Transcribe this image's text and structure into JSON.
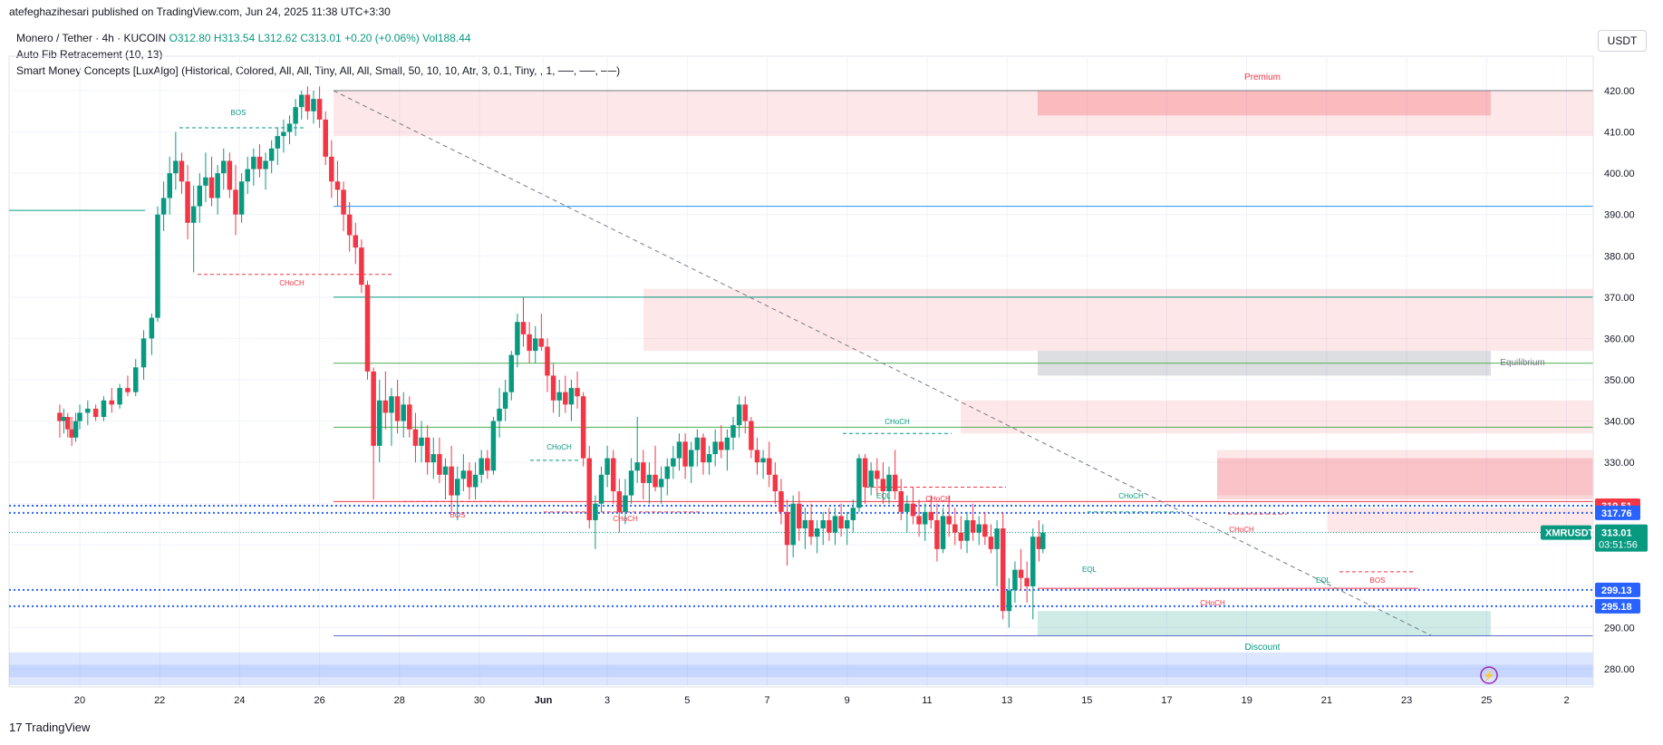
{
  "header": {
    "published_line": "atefeghazihesari published on TradingView.com, Jun 24, 2025 11:38 UTC+3:30"
  },
  "legend": {
    "symbol_line": "Monero / Tether · 4h · KUCOIN",
    "open": "O312.80",
    "high": "H313.54",
    "low": "L312.62",
    "close": "C313.01",
    "change": "+0.20 (+0.06%)",
    "volume": "Vol188.44",
    "indicator1": "Auto Fib Retracement (10, 13)",
    "indicator2": "Smart Money Concepts [LuxAlgo] (Historical, Colored, All, All, Tiny, All, All, Small, 50, 10, 10, Atr, 3, 0.1, Tiny, , 1, ──, ──, ──)"
  },
  "currency_button": "USDT",
  "brand": "TradingView",
  "colors": {
    "up": "#089981",
    "down": "#f23645",
    "fib_blue": "#2962ff",
    "premium_zone": "#f23645",
    "discount_zone": "#089981"
  },
  "chart_data": {
    "type": "candlestick",
    "symbol": "XMRUSDT",
    "timeframe": "4h",
    "y_axis": {
      "ticks": [
        "420.00",
        "410.00",
        "400.00",
        "390.00",
        "380.00",
        "370.00",
        "360.00",
        "350.00",
        "340.00",
        "330.00",
        "320.00",
        "290.00",
        "280.00"
      ]
    },
    "x_axis": {
      "ticks": [
        "20",
        "22",
        "24",
        "26",
        "28",
        "30",
        "Jun",
        "3",
        "5",
        "7",
        "9",
        "11",
        "13",
        "15",
        "17",
        "19",
        "21",
        "23",
        "25",
        "2"
      ]
    },
    "last_price": {
      "label": "XMRUSDT",
      "value": "313.01",
      "countdown": "03:51:56"
    },
    "price_tags": [
      {
        "value": "319.51",
        "color": "#f23645"
      },
      {
        "value": "317.76",
        "color": "#2962ff"
      },
      {
        "value": "299.13",
        "color": "#2962ff"
      },
      {
        "value": "295.18",
        "color": "#2962ff"
      }
    ],
    "zone_labels": {
      "premium": "Premium",
      "equilibrium": "Equilibrium",
      "discount": "Discount"
    },
    "structure_labels": [
      {
        "text": "BOS",
        "color": "#089981"
      },
      {
        "text": "CHoCH",
        "color": "#f23645"
      },
      {
        "text": "CHoCH",
        "color": "#089981"
      },
      {
        "text": "BOS",
        "color": "#f23645"
      },
      {
        "text": "CHoCH",
        "color": "#f23645"
      },
      {
        "text": "CHoCH",
        "color": "#089981"
      },
      {
        "text": "EQL",
        "color": "#089981"
      },
      {
        "text": "CHoCH",
        "color": "#f23645"
      },
      {
        "text": "CHoCH",
        "color": "#089981"
      },
      {
        "text": "EQL",
        "color": "#089981"
      },
      {
        "text": "CHoCH",
        "color": "#f23645"
      },
      {
        "text": "EQL",
        "color": "#089981"
      },
      {
        "text": "BOS",
        "color": "#f23645"
      },
      {
        "text": "CHoCH",
        "color": "#f23645"
      }
    ],
    "candles": [
      [
        19.5,
        342,
        344,
        336,
        340
      ],
      [
        19.6,
        340,
        343,
        337,
        341
      ],
      [
        19.7,
        341,
        342,
        336,
        338
      ],
      [
        19.8,
        338,
        341,
        334,
        336
      ],
      [
        19.9,
        336,
        342,
        335,
        340
      ],
      [
        20.0,
        340,
        344,
        338,
        342
      ],
      [
        20.2,
        342,
        345,
        339,
        343
      ],
      [
        20.4,
        343,
        344,
        340,
        341
      ],
      [
        20.6,
        341,
        346,
        340,
        345
      ],
      [
        20.8,
        345,
        348,
        342,
        344
      ],
      [
        21.0,
        344,
        349,
        343,
        348
      ],
      [
        21.2,
        348,
        351,
        346,
        347
      ],
      [
        21.4,
        347,
        355,
        346,
        353
      ],
      [
        21.6,
        353,
        362,
        350,
        360
      ],
      [
        21.8,
        360,
        366,
        356,
        365
      ],
      [
        21.95,
        365,
        392,
        364,
        390
      ],
      [
        22.1,
        390,
        398,
        386,
        394
      ],
      [
        22.25,
        394,
        404,
        390,
        400
      ],
      [
        22.4,
        400,
        410,
        396,
        403
      ],
      [
        22.55,
        403,
        405,
        395,
        398
      ],
      [
        22.7,
        398,
        402,
        384,
        388
      ],
      [
        22.85,
        388,
        397,
        376,
        392
      ],
      [
        23.0,
        392,
        400,
        388,
        397
      ],
      [
        23.15,
        397,
        405,
        393,
        399
      ],
      [
        23.3,
        399,
        404,
        392,
        394
      ],
      [
        23.45,
        394,
        402,
        390,
        400
      ],
      [
        23.6,
        400,
        406,
        396,
        403
      ],
      [
        23.75,
        403,
        405,
        394,
        396
      ],
      [
        23.9,
        396,
        402,
        385,
        390
      ],
      [
        24.05,
        390,
        400,
        388,
        398
      ],
      [
        24.2,
        398,
        404,
        395,
        401
      ],
      [
        24.35,
        401,
        406,
        397,
        404
      ],
      [
        24.5,
        404,
        407,
        399,
        401
      ],
      [
        24.65,
        401,
        405,
        396,
        403
      ],
      [
        24.8,
        403,
        408,
        400,
        406
      ],
      [
        24.95,
        406,
        411,
        402,
        409
      ],
      [
        25.1,
        409,
        413,
        405,
        410
      ],
      [
        25.25,
        410,
        414,
        407,
        412
      ],
      [
        25.4,
        412,
        418,
        409,
        416
      ],
      [
        25.55,
        416,
        420,
        413,
        419
      ],
      [
        25.7,
        419,
        421,
        413,
        415
      ],
      [
        25.85,
        415,
        420,
        412,
        418
      ],
      [
        26.0,
        418,
        421,
        411,
        413
      ],
      [
        26.15,
        413,
        415,
        402,
        404
      ],
      [
        26.3,
        404,
        408,
        394,
        398
      ],
      [
        26.45,
        398,
        403,
        392,
        396
      ],
      [
        26.6,
        396,
        398,
        386,
        390
      ],
      [
        26.75,
        390,
        393,
        381,
        385
      ],
      [
        26.9,
        385,
        388,
        378,
        382
      ],
      [
        27.05,
        382,
        384,
        371,
        373
      ],
      [
        27.2,
        373,
        374,
        350,
        352
      ],
      [
        27.35,
        352,
        353,
        321,
        334
      ],
      [
        27.5,
        334,
        350,
        330,
        345
      ],
      [
        27.65,
        345,
        352,
        338,
        342
      ],
      [
        27.8,
        342,
        348,
        334,
        346
      ],
      [
        27.95,
        346,
        350,
        337,
        340
      ],
      [
        28.1,
        340,
        347,
        336,
        344
      ],
      [
        28.25,
        344,
        346,
        336,
        338
      ],
      [
        28.4,
        338,
        342,
        330,
        334
      ],
      [
        28.55,
        334,
        340,
        330,
        336
      ],
      [
        28.7,
        336,
        339,
        327,
        330
      ],
      [
        28.85,
        330,
        336,
        326,
        332
      ],
      [
        29.0,
        332,
        336,
        325,
        327
      ],
      [
        29.15,
        327,
        331,
        321,
        329
      ],
      [
        29.3,
        329,
        334,
        318,
        322
      ],
      [
        29.45,
        322,
        329,
        316,
        326
      ],
      [
        29.6,
        326,
        332,
        323,
        328
      ],
      [
        29.75,
        328,
        330,
        321,
        324
      ],
      [
        29.9,
        324,
        330,
        321,
        327
      ],
      [
        30.05,
        327,
        333,
        325,
        331
      ],
      [
        30.2,
        331,
        333,
        326,
        328
      ],
      [
        30.35,
        328,
        341,
        327,
        340
      ],
      [
        30.5,
        340,
        348,
        336,
        343
      ],
      [
        30.65,
        343,
        350,
        340,
        347
      ],
      [
        30.8,
        347,
        357,
        345,
        356
      ],
      [
        30.95,
        356,
        366,
        353,
        364
      ],
      [
        31.1,
        364,
        370,
        358,
        361
      ],
      [
        31.25,
        361,
        364,
        354,
        357
      ],
      [
        31.4,
        357,
        363,
        354,
        360
      ],
      [
        31.55,
        360,
        366,
        357,
        358
      ],
      [
        31.7,
        358,
        360,
        347,
        351
      ],
      [
        31.85,
        351,
        354,
        342,
        345
      ],
      [
        32.0,
        345,
        350,
        341,
        347
      ],
      [
        32.15,
        347,
        351,
        342,
        344
      ],
      [
        32.3,
        344,
        350,
        340,
        348
      ],
      [
        32.45,
        348,
        352,
        343,
        346
      ],
      [
        32.6,
        346,
        347,
        329,
        331
      ],
      [
        32.75,
        331,
        334,
        314,
        316
      ],
      [
        32.9,
        316,
        322,
        309,
        320
      ],
      [
        33.05,
        320,
        329,
        318,
        327
      ],
      [
        33.2,
        327,
        334,
        324,
        331
      ],
      [
        33.35,
        331,
        333,
        320,
        323
      ],
      [
        33.5,
        323,
        326,
        313,
        318
      ],
      [
        33.65,
        318,
        326,
        315,
        322
      ],
      [
        33.8,
        322,
        331,
        320,
        328
      ],
      [
        33.95,
        328,
        341,
        325,
        330
      ],
      [
        34.1,
        330,
        333,
        321,
        325
      ],
      [
        34.25,
        325,
        330,
        320,
        327
      ],
      [
        34.4,
        327,
        334,
        323,
        324
      ],
      [
        34.55,
        324,
        329,
        320,
        326
      ],
      [
        34.7,
        326,
        331,
        322,
        329
      ],
      [
        34.85,
        329,
        334,
        326,
        331
      ],
      [
        35.0,
        331,
        337,
        328,
        335
      ],
      [
        35.15,
        335,
        337,
        326,
        329
      ],
      [
        35.3,
        329,
        335,
        325,
        333
      ],
      [
        35.45,
        333,
        338,
        329,
        336
      ],
      [
        35.6,
        336,
        337,
        327,
        330
      ],
      [
        35.75,
        330,
        334,
        327,
        332
      ],
      [
        35.9,
        332,
        338,
        329,
        335
      ],
      [
        36.05,
        335,
        339,
        331,
        333
      ],
      [
        36.2,
        333,
        338,
        328,
        336
      ],
      [
        36.35,
        336,
        341,
        333,
        339
      ],
      [
        36.5,
        339,
        346,
        336,
        344
      ],
      [
        36.65,
        344,
        346,
        337,
        340
      ],
      [
        36.8,
        340,
        341,
        331,
        333
      ],
      [
        36.95,
        333,
        336,
        327,
        330
      ],
      [
        37.1,
        330,
        333,
        326,
        331
      ],
      [
        37.25,
        331,
        335,
        324,
        327
      ],
      [
        37.4,
        327,
        330,
        320,
        323
      ],
      [
        37.55,
        323,
        326,
        315,
        318
      ],
      [
        37.7,
        318,
        321,
        305,
        310
      ],
      [
        37.85,
        310,
        322,
        307,
        320
      ],
      [
        38.0,
        320,
        323,
        311,
        314
      ],
      [
        38.15,
        314,
        319,
        309,
        316
      ],
      [
        38.3,
        316,
        320,
        310,
        312
      ],
      [
        38.45,
        312,
        316,
        308,
        314
      ],
      [
        38.6,
        314,
        318,
        310,
        316
      ],
      [
        38.75,
        316,
        319,
        311,
        313
      ],
      [
        38.9,
        313,
        319,
        310,
        317
      ],
      [
        39.05,
        317,
        320,
        312,
        314
      ],
      [
        39.2,
        314,
        318,
        310,
        316
      ],
      [
        39.35,
        316,
        321,
        313,
        319
      ],
      [
        39.5,
        319,
        332,
        318,
        331
      ],
      [
        39.65,
        331,
        332,
        320,
        324
      ],
      [
        39.8,
        324,
        330,
        322,
        328
      ],
      [
        39.95,
        328,
        331,
        322,
        326
      ],
      [
        40.1,
        326,
        330,
        320,
        323
      ],
      [
        40.25,
        323,
        329,
        320,
        327
      ],
      [
        40.4,
        327,
        333,
        321,
        323
      ],
      [
        40.55,
        323,
        326,
        316,
        318
      ],
      [
        40.7,
        318,
        322,
        313,
        320
      ],
      [
        40.85,
        320,
        324,
        315,
        317
      ],
      [
        41.0,
        317,
        321,
        312,
        315
      ],
      [
        41.15,
        315,
        320,
        311,
        318
      ],
      [
        41.3,
        318,
        322,
        314,
        316
      ],
      [
        41.45,
        316,
        320,
        306,
        309
      ],
      [
        41.6,
        309,
        319,
        308,
        317
      ],
      [
        41.75,
        317,
        322,
        312,
        315
      ],
      [
        41.9,
        315,
        319,
        310,
        313
      ],
      [
        42.05,
        313,
        317,
        309,
        311
      ],
      [
        42.2,
        311,
        318,
        308,
        316
      ],
      [
        42.35,
        316,
        320,
        311,
        313
      ],
      [
        42.5,
        313,
        317,
        310,
        315
      ],
      [
        42.65,
        315,
        318,
        310,
        312
      ],
      [
        42.8,
        312,
        315,
        308,
        309
      ],
      [
        42.95,
        309,
        316,
        300,
        314
      ],
      [
        43.1,
        314,
        318,
        292,
        294
      ],
      [
        43.25,
        294,
        302,
        290,
        299
      ],
      [
        43.4,
        299,
        306,
        296,
        304
      ],
      [
        43.55,
        304,
        309,
        299,
        302
      ],
      [
        43.7,
        302,
        306,
        296,
        300
      ],
      [
        43.85,
        300,
        314,
        292,
        312
      ],
      [
        44.0,
        312,
        316,
        306,
        309
      ],
      [
        44.1,
        309,
        315,
        308,
        313
      ]
    ]
  }
}
